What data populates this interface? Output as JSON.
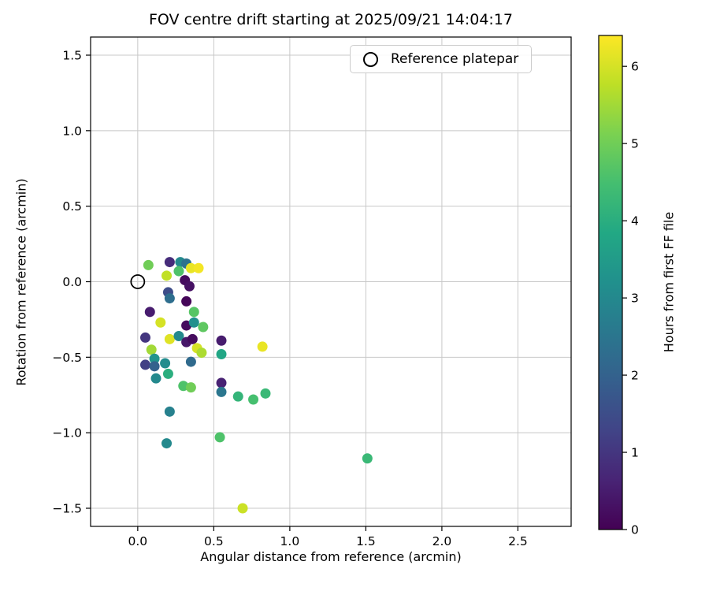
{
  "chart_data": {
    "type": "scatter",
    "title": "FOV centre drift starting at 2025/09/21 14:04:17",
    "xlabel": "Angular distance from reference (arcmin)",
    "ylabel": "Rotation from reference (arcmin)",
    "xlim": [
      -0.31,
      2.85
    ],
    "ylim": [
      -1.62,
      1.62
    ],
    "xticks": [
      0.0,
      0.5,
      1.0,
      1.5,
      2.0,
      2.5
    ],
    "yticks": [
      -1.5,
      -1.0,
      -0.5,
      0.0,
      0.5,
      1.0,
      1.5
    ],
    "grid": true,
    "legend": {
      "label": "Reference platepar",
      "position": "upper right"
    },
    "colorbar": {
      "label": "Hours from first FF file",
      "min": 0,
      "max": 6.4,
      "ticks": [
        0,
        1,
        2,
        3,
        4,
        5,
        6
      ],
      "colormap": "viridis"
    },
    "reference_point": {
      "x": 0.0,
      "y": 0.0
    },
    "points": [
      {
        "x": 0.07,
        "y": 0.11,
        "hours": 5.0
      },
      {
        "x": 0.21,
        "y": 0.13,
        "hours": 0.8
      },
      {
        "x": 0.28,
        "y": 0.13,
        "hours": 3.0
      },
      {
        "x": 0.32,
        "y": 0.12,
        "hours": 2.4
      },
      {
        "x": 0.27,
        "y": 0.07,
        "hours": 4.6
      },
      {
        "x": 0.19,
        "y": 0.04,
        "hours": 5.8
      },
      {
        "x": 0.31,
        "y": 0.01,
        "hours": 0.2
      },
      {
        "x": 0.35,
        "y": 0.09,
        "hours": 6.2
      },
      {
        "x": 0.4,
        "y": 0.09,
        "hours": 6.3
      },
      {
        "x": 0.2,
        "y": -0.07,
        "hours": 1.5
      },
      {
        "x": 0.34,
        "y": -0.03,
        "hours": 0.3
      },
      {
        "x": 0.21,
        "y": -0.11,
        "hours": 2.3
      },
      {
        "x": 0.32,
        "y": -0.13,
        "hours": 0.1
      },
      {
        "x": 0.08,
        "y": -0.2,
        "hours": 0.5
      },
      {
        "x": 0.37,
        "y": -0.2,
        "hours": 4.7
      },
      {
        "x": 0.15,
        "y": -0.27,
        "hours": 6.0
      },
      {
        "x": 0.32,
        "y": -0.29,
        "hours": 0.2
      },
      {
        "x": 0.37,
        "y": -0.27,
        "hours": 3.2
      },
      {
        "x": 0.43,
        "y": -0.3,
        "hours": 4.8
      },
      {
        "x": 0.21,
        "y": -0.38,
        "hours": 6.1
      },
      {
        "x": 0.27,
        "y": -0.36,
        "hours": 3.0
      },
      {
        "x": 0.32,
        "y": -0.4,
        "hours": 0.4
      },
      {
        "x": 0.36,
        "y": -0.38,
        "hours": 0.2
      },
      {
        "x": 0.55,
        "y": -0.39,
        "hours": 0.5
      },
      {
        "x": 0.82,
        "y": -0.43,
        "hours": 6.2
      },
      {
        "x": 0.05,
        "y": -0.37,
        "hours": 1.0
      },
      {
        "x": 0.09,
        "y": -0.45,
        "hours": 5.5
      },
      {
        "x": 0.39,
        "y": -0.44,
        "hours": 6.0
      },
      {
        "x": 0.42,
        "y": -0.47,
        "hours": 5.6
      },
      {
        "x": 0.55,
        "y": -0.48,
        "hours": 3.8
      },
      {
        "x": 0.11,
        "y": -0.51,
        "hours": 3.3
      },
      {
        "x": 0.18,
        "y": -0.54,
        "hours": 3.1
      },
      {
        "x": 0.05,
        "y": -0.55,
        "hours": 1.2
      },
      {
        "x": 0.11,
        "y": -0.56,
        "hours": 2.0
      },
      {
        "x": 0.35,
        "y": -0.53,
        "hours": 2.2
      },
      {
        "x": 0.12,
        "y": -0.64,
        "hours": 3.0
      },
      {
        "x": 0.2,
        "y": -0.61,
        "hours": 4.0
      },
      {
        "x": 0.3,
        "y": -0.69,
        "hours": 4.6
      },
      {
        "x": 0.35,
        "y": -0.7,
        "hours": 5.0
      },
      {
        "x": 0.55,
        "y": -0.67,
        "hours": 0.6
      },
      {
        "x": 0.55,
        "y": -0.73,
        "hours": 2.5
      },
      {
        "x": 0.66,
        "y": -0.76,
        "hours": 4.2
      },
      {
        "x": 0.76,
        "y": -0.78,
        "hours": 4.5
      },
      {
        "x": 0.84,
        "y": -0.74,
        "hours": 4.3
      },
      {
        "x": 0.21,
        "y": -0.86,
        "hours": 2.8
      },
      {
        "x": 0.19,
        "y": -1.07,
        "hours": 3.0
      },
      {
        "x": 0.54,
        "y": -1.03,
        "hours": 4.6
      },
      {
        "x": 1.51,
        "y": -1.17,
        "hours": 4.3
      },
      {
        "x": 0.69,
        "y": -1.5,
        "hours": 5.9
      }
    ],
    "style": {
      "grid_color": "#c8c8c8",
      "spine_color": "#000000",
      "marker_radius": 6.5
    }
  }
}
